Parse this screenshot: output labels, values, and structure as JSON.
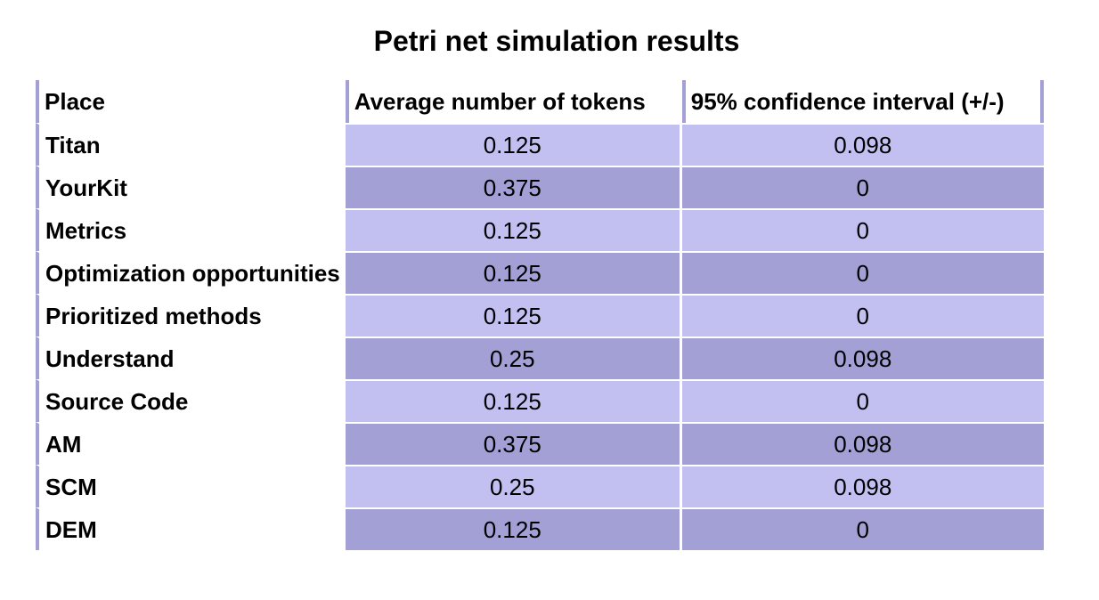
{
  "title": "Petri net simulation results",
  "table": {
    "headers": {
      "place": "Place",
      "average": "Average number of tokens",
      "confidence": "95% confidence interval (+/-)"
    },
    "rows": [
      {
        "place": "Titan",
        "average": "0.125",
        "confidence": "0.098"
      },
      {
        "place": "YourKit",
        "average": "0.375",
        "confidence": "0"
      },
      {
        "place": "Metrics",
        "average": "0.125",
        "confidence": "0"
      },
      {
        "place": "Optimization opportunities",
        "average": "0.125",
        "confidence": "0"
      },
      {
        "place": "Prioritized methods",
        "average": "0.125",
        "confidence": "0"
      },
      {
        "place": "Understand",
        "average": "0.25",
        "confidence": "0.098"
      },
      {
        "place": "Source Code",
        "average": "0.125",
        "confidence": "0"
      },
      {
        "place": "AM",
        "average": "0.375",
        "confidence": "0.098"
      },
      {
        "place": "SCM",
        "average": "0.25",
        "confidence": "0.098"
      },
      {
        "place": "DEM",
        "average": "0.125",
        "confidence": "0"
      }
    ]
  },
  "colors": {
    "row_light": "#c2c0f0",
    "row_dark": "#a2a0d4",
    "header_rule": "#a2a0d4"
  }
}
